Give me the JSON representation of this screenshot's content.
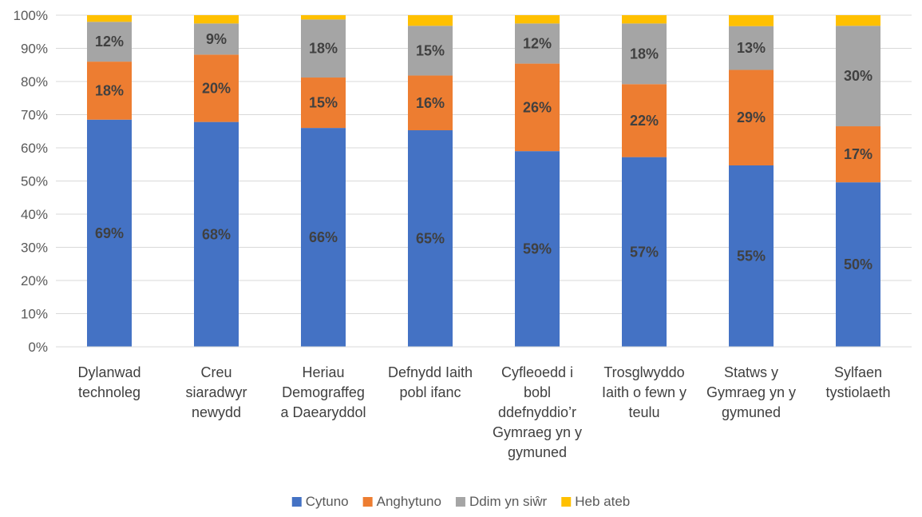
{
  "chart_data": {
    "type": "bar",
    "stacked": true,
    "percent_stacked": true,
    "categories": [
      [
        "Dylanwad",
        "technoleg"
      ],
      [
        "Creu",
        "siaradwyr",
        "newydd"
      ],
      [
        "Heriau",
        "Demograffeg",
        "a Daearyddol"
      ],
      [
        "Defnydd Iaith",
        "pobl ifanc"
      ],
      [
        "Cyfleoedd i",
        "bobl",
        "ddefnyddio’r",
        "Gymraeg yn y",
        "gymuned"
      ],
      [
        "Trosglwyddo",
        "Iaith o fewn y",
        "teulu"
      ],
      [
        "Statws y",
        "Gymraeg yn y",
        "gymuned"
      ],
      [
        "Sylfaen",
        "tystiolaeth"
      ]
    ],
    "series": [
      {
        "name": "Cytuno",
        "color": "#4472C4",
        "values": [
          68.5,
          67.8,
          66.0,
          65.3,
          59.0,
          57.2,
          54.7,
          49.6
        ],
        "labels": [
          "69%",
          "68%",
          "66%",
          "65%",
          "59%",
          "57%",
          "55%",
          "50%"
        ]
      },
      {
        "name": "Anghytuno",
        "color": "#ED7D31",
        "values": [
          17.5,
          20.3,
          15.2,
          16.5,
          26.4,
          22.0,
          28.8,
          16.9
        ],
        "labels": [
          "18%",
          "20%",
          "15%",
          "16%",
          "26%",
          "22%",
          "29%",
          "17%"
        ]
      },
      {
        "name": "Ddim yn siŵr",
        "color": "#A5A5A5",
        "values": [
          12.0,
          9.4,
          17.5,
          15.0,
          12.1,
          18.3,
          13.2,
          30.3
        ],
        "labels": [
          "12%",
          "9%",
          "18%",
          "15%",
          "12%",
          "18%",
          "13%",
          "30%"
        ]
      },
      {
        "name": "Heb ateb",
        "color": "#FFC000",
        "values": [
          2.0,
          2.5,
          1.3,
          3.2,
          2.5,
          2.5,
          3.3,
          3.2
        ],
        "labels": [
          "",
          "",
          "",
          "",
          "",
          "",
          "",
          ""
        ]
      }
    ],
    "ylim": [
      0,
      100
    ],
    "yticks": [
      "0%",
      "10%",
      "20%",
      "30%",
      "40%",
      "50%",
      "60%",
      "70%",
      "80%",
      "90%",
      "100%"
    ],
    "gridlines": true,
    "legend_position": "bottom"
  }
}
